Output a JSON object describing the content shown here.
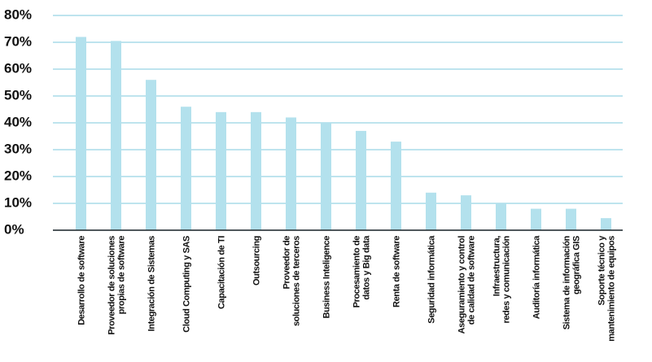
{
  "chart_data": {
    "type": "bar",
    "categories": [
      "Desarrollo de software",
      "Proveedor de soluciones\npropias de software",
      "Integración de Sistemas",
      "Cloud Computing y SAS",
      "Capacitación de TI",
      "Outsourcing",
      "Proveedor de\nsoluciones de terceros",
      "Business Inteligence",
      "Procesamiento de\ndatos y Big data",
      "Renta de software",
      "Seguridad informática",
      "Aseguramiento y control\nde calidad de software",
      "Infraestructura,\nredes y comunicación",
      "Auditoría informática",
      "Sistema de información\ngeográfica GIS",
      "Soporte técnico y\nmantenimiento de equipos"
    ],
    "values": [
      72,
      70.5,
      56,
      46,
      44,
      44,
      42,
      40,
      37,
      33,
      14,
      13,
      10,
      8,
      8,
      4.5
    ],
    "color": "#b3e1ed",
    "ylim": [
      0,
      80
    ],
    "yticks": [
      {
        "value": 0,
        "label": "0%"
      },
      {
        "value": 10,
        "label": "10%"
      },
      {
        "value": 20,
        "label": "20%"
      },
      {
        "value": 30,
        "label": "30%"
      },
      {
        "value": 40,
        "label": "40%"
      },
      {
        "value": 50,
        "label": "50%"
      },
      {
        "value": 60,
        "label": "60%"
      },
      {
        "value": 70,
        "label": "70%"
      },
      {
        "value": 80,
        "label": "80%"
      }
    ],
    "grid": true,
    "grid_color": "#a9dbe9"
  }
}
